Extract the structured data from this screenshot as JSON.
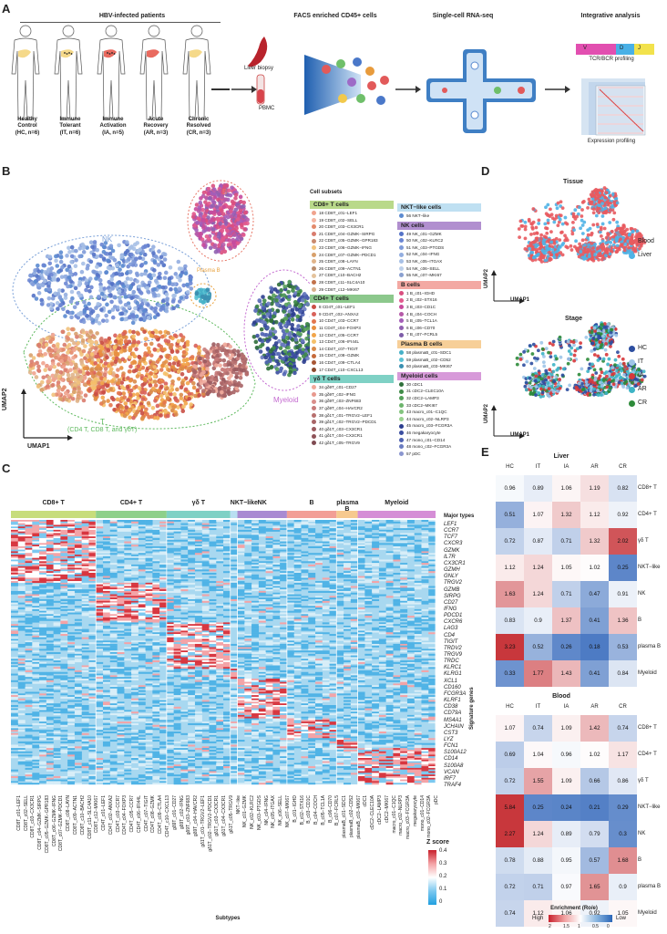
{
  "panels": {
    "A": "A",
    "B": "B",
    "C": "C",
    "D": "D",
    "E": "E"
  },
  "panelA": {
    "group_title": "HBV-infected patients",
    "patients": [
      {
        "name": "Healthy\nControl",
        "sub": "(HC, n=6)"
      },
      {
        "name": "Immune\nTolerant",
        "sub": "(IT, n=6)"
      },
      {
        "name": "Immune\nActivation",
        "sub": "(IA, n=5)"
      },
      {
        "name": "Acute\nRecovery",
        "sub": "(AR, n=3)"
      },
      {
        "name": "Chronic\nResolved",
        "sub": "(CR, n=3)"
      }
    ],
    "liver_biopsy": "Liver biopsy",
    "pbmc": "PBMC",
    "facs_title": "FACS enriched CD45+ cells",
    "scrna_title": "Single-cell RNA-seq",
    "integrative_title": "Integrative analysis",
    "vdj": [
      "V",
      "D",
      "J"
    ],
    "tcr_label": "TCR/BCR profiling",
    "expr_label": "Expression profiling"
  },
  "panelB": {
    "ylabel": "UMAP2",
    "xlabel": "UMAP1",
    "region_labels": {
      "b": "B",
      "nk": "NK",
      "plasma": "Plasma B",
      "myeloid": "Myeloid",
      "t": "T",
      "t_sub": "(CD4 T, CD8 T, and γδT)"
    },
    "legend_title": "Cell subsets",
    "groups_left": [
      {
        "title": "CD8+ T cells",
        "color": "#b9d98a",
        "items": [
          {
            "t": "18 CD8T_c01−LEF1",
            "c": "#f0a38e"
          },
          {
            "t": "19 CD8T_c02−SELL",
            "c": "#f4b6a3"
          },
          {
            "t": "20 CD8T_c03−CX3CR1",
            "c": "#e38a6b"
          },
          {
            "t": "21 CD8T_c04−GZMK−SIRPG",
            "c": "#d97c6e"
          },
          {
            "t": "22 CD8T_c05−GZMK−GPR183",
            "c": "#c98a6e"
          },
          {
            "t": "23 CD8T_c06−GZMK−IFNG",
            "c": "#f1c27d"
          },
          {
            "t": "24 CD8T_c07−GZMK−PDCD1",
            "c": "#d8a06b"
          },
          {
            "t": "25 CD8T_c08−LAYN",
            "c": "#e0b48a"
          },
          {
            "t": "26 CD8T_c09−ACTN1",
            "c": "#b98c6c"
          },
          {
            "t": "27 CD8T_c10−BACH2",
            "c": "#e4c39c"
          },
          {
            "t": "28 CD8T_c11−SLC4A10",
            "c": "#c2724a"
          },
          {
            "t": "29 CD8T_c12−MKI67",
            "c": "#d8b08a"
          }
        ]
      },
      {
        "title": "CD4+ T cells",
        "color": "#8cc88c",
        "items": [
          {
            "t": "8 CD4T_c01−LEF1",
            "c": "#c94f45"
          },
          {
            "t": "9 CD4T_c02−ANXA2",
            "c": "#d8615a"
          },
          {
            "t": "10 CD4T_c03−CCR7",
            "c": "#e3764e"
          },
          {
            "t": "11 CD4T_c04−FOXP3",
            "c": "#e88f3f"
          },
          {
            "t": "12 CD4T_c05−CCR7",
            "c": "#f2a54a"
          },
          {
            "t": "13 CD4T_c06−IFI44L",
            "c": "#f5c06a"
          },
          {
            "t": "14 CD4T_c07−TIGIT",
            "c": "#d98b4a"
          },
          {
            "t": "15 CD4T_c08−GZMK",
            "c": "#c66a3a"
          },
          {
            "t": "16 CD4T_c09−CTLA4",
            "c": "#a85634"
          },
          {
            "t": "17 CD4T_c10−CXCL13",
            "c": "#8c4a2e"
          }
        ]
      },
      {
        "title": "γδ T cells",
        "color": "#7fd1c5",
        "items": [
          {
            "t": "34 gδ9T_c01−CD27",
            "c": "#f0a99a"
          },
          {
            "t": "35 gδ9T_c02−IFNG",
            "c": "#e8998e"
          },
          {
            "t": "36 gδ9T_c03−ZNF683",
            "c": "#d98e8a"
          },
          {
            "t": "37 gδ9T_c04−HAVCR2",
            "c": "#c87b7a"
          },
          {
            "t": "38 gδ1T_c01−TRGV2−LEF1",
            "c": "#b76f6e"
          },
          {
            "t": "39 gδ1T_c02−TRGV2−PDCD1",
            "c": "#a76466"
          },
          {
            "t": "40 gδ1T_c03−CX3CR1",
            "c": "#9b5b5f"
          },
          {
            "t": "41 gδ1T_c04−CX3CR1",
            "c": "#8e5358"
          },
          {
            "t": "42 gδ1T_c05−TRGV9",
            "c": "#7f4b52"
          }
        ]
      }
    ],
    "groups_right": [
      {
        "title": "NKT−like cells",
        "color": "#bfe0f2",
        "items": [
          {
            "t": "56 NKT−like",
            "c": "#5c8bd0"
          }
        ]
      },
      {
        "title": "NK cells",
        "color": "#b18fcf",
        "items": [
          {
            "t": "49 NK_c01−GZMK",
            "c": "#5573c7"
          },
          {
            "t": "50 NK_c02−KLRC2",
            "c": "#6b86d3"
          },
          {
            "t": "51 NK_c03−PTGDS",
            "c": "#7f9bd9"
          },
          {
            "t": "52 NK_c04−IFNG",
            "c": "#93aee0"
          },
          {
            "t": "53 NK_c05−ITGAX",
            "c": "#a7c0e6"
          },
          {
            "t": "54 NK_c06−SELL",
            "c": "#bccfea"
          },
          {
            "t": "55 NK_c07−MKI67",
            "c": "#8aa0d0"
          }
        ]
      },
      {
        "title": "B cells",
        "color": "#f3a9a3",
        "items": [
          {
            "t": "1 B_c01−IGHD",
            "c": "#d94f80"
          },
          {
            "t": "2 B_c02−STX16",
            "c": "#e25a8e"
          },
          {
            "t": "3 B_c03−CD1C",
            "c": "#c84a9c"
          },
          {
            "t": "4 B_c04−COCH",
            "c": "#b55aa8"
          },
          {
            "t": "5 B_c05−TCL1A",
            "c": "#a45db8"
          },
          {
            "t": "6 B_c06−CD70",
            "c": "#9060b0"
          },
          {
            "t": "7 B_c07−FCRL5",
            "c": "#7d5ca8"
          }
        ]
      },
      {
        "title": "Plasma B cells",
        "color": "#f7cf98",
        "items": [
          {
            "t": "58 plasmaB_c01−SDC1",
            "c": "#45b0c8"
          },
          {
            "t": "59 plasmaB_c02−CD52",
            "c": "#5bc2d4"
          },
          {
            "t": "60 plasmaB_c03−MKI67",
            "c": "#3a8fb0"
          }
        ]
      },
      {
        "title": "Myeloid cells",
        "color": "#d79ad9",
        "items": [
          {
            "t": "30 cDC1",
            "c": "#2f6f3a"
          },
          {
            "t": "31 cDC2−CLEC10A",
            "c": "#3f8a47"
          },
          {
            "t": "32 cDC2−LAMP3",
            "c": "#55a05a"
          },
          {
            "t": "33 cDC2−MKI67",
            "c": "#6cb46c"
          },
          {
            "t": "43 macro_c01−C1QC",
            "c": "#83c47e"
          },
          {
            "t": "44 macro_c02−NLRP3",
            "c": "#9ad290"
          },
          {
            "t": "45 macro_c03−FCGR3A",
            "c": "#2c3e8f"
          },
          {
            "t": "46 megakaryocyte",
            "c": "#3b4ea0"
          },
          {
            "t": "47 mono_c01−CD14",
            "c": "#4f63b2"
          },
          {
            "t": "48 mono_c02−FCGR3A",
            "c": "#6a7cc0"
          },
          {
            "t": "57 pDC",
            "c": "#8a96cf"
          }
        ]
      }
    ]
  },
  "panelC": {
    "groups": [
      {
        "name": "CD8+ T",
        "color": "#c7dd7c",
        "n": 12
      },
      {
        "name": "CD4+ T",
        "color": "#8ed08a",
        "n": 10
      },
      {
        "name": "γδ T",
        "color": "#7fd1c5",
        "n": 9
      },
      {
        "name": "NKT−like",
        "color": "#b9dff2",
        "n": 1
      },
      {
        "name": "NK",
        "color": "#a98ad2",
        "n": 7
      },
      {
        "name": "B",
        "color": "#f29e96",
        "n": 7
      },
      {
        "name": "plasma B",
        "color": "#f6c98f",
        "n": 3
      },
      {
        "name": "Myeloid",
        "color": "#d58ed6",
        "n": 11
      }
    ],
    "major_types_label": "Major types",
    "signature_label": "Signature genes",
    "subtypes_label": "Subtypes",
    "genes": [
      "LEF1",
      "CCR7",
      "TCF7",
      "CXCR3",
      "GZMK",
      "IL7R",
      "CX3CR1",
      "GZMH",
      "GNLY",
      "TRGV2",
      "GZMB",
      "SIRPG",
      "CD27",
      "IFNG",
      "PDCD1",
      "CXCR6",
      "LAG3",
      "CD4",
      "TIGIT",
      "TRDV2",
      "TRGV9",
      "TRDC",
      "KLRC1",
      "KLRG1",
      "XCL1",
      "CD160",
      "FCGR3A",
      "KLRF1",
      "CD38",
      "CD79A",
      "MS4A1",
      "JCHAIN",
      "CST3",
      "LYZ",
      "FCN1",
      "S100A12",
      "CD14",
      "S100A8",
      "VCAN",
      "IRF7",
      "TRAF4"
    ],
    "subtypes": [
      "CD8T_c01−LEF1",
      "CD8T_c02−SELL",
      "CD8T_c03−CX3CR1",
      "CD8T_c04−GZMK−SIRPG",
      "CD8T_c05−GZMK−GPR183",
      "CD8T_c06−GZMK−IFNG",
      "CD8T_c07−GZMK−PDCD1",
      "CD8T_c08−LAYN",
      "CD8T_c09−ACTN1",
      "CD8T_c10−BACH2",
      "CD8T_c11−SLC4A10",
      "CD8T_c12−MKI67",
      "CD4T_c01−LEF1",
      "CD4T_c02−ANXA2",
      "CD4T_c03−CCR7",
      "CD4T_c04−FOXP3",
      "CD4T_c05−CCR7",
      "CD4T_c06−IFI44L",
      "CD4T_c07−TIGIT",
      "CD4T_c08−GZMK",
      "CD4T_c09−CTLA4",
      "CD4T_c10−CXCL13",
      "gδ9T_c01−CD27",
      "gδ9T_c02−IFNG",
      "gδ9T_c03−ZNF683",
      "gδ9T_c04−HAVCR2",
      "gδ1T_c01−TRGV2−LEF1",
      "gδ1T_c02−TRGV2−PDCD1",
      "gδ1T_c03−CX3CR1",
      "gδ1T_c04−CX3CR1",
      "gδ1T_c05−TRGV9",
      "NKT−like",
      "NK_c01−GZMK",
      "NK_c02−KLRC2",
      "NK_c03−PTGDS",
      "NK_c04−IFNG",
      "NK_c05−ITGAX",
      "NK_c06−SELL",
      "NK_c07−MKI67",
      "B_c01−IGHD",
      "B_c02−STX16",
      "B_c03−CD1C",
      "B_c04−COCH",
      "B_c05−TCL1A",
      "B_c06−CD70",
      "B_c07−FCRL5",
      "plasmaB_c01−SDC1",
      "plasmaB_c02−CD52",
      "plasmaB_c03−MKI67",
      "cDC1",
      "cDC2−CLEC10A",
      "cDC2−LAMP3",
      "cDC2−MKI67",
      "macro_c01−C1QC",
      "macro_c02−NLRP3",
      "macro_c03−FCGR3A",
      "megakaryocyte",
      "mono_c01−CD14",
      "mono_c02−FCGR3A",
      "pDC"
    ],
    "zscore_title": "Z score",
    "zscore_ticks": [
      "0.4",
      "0.3",
      "0.2",
      "0.1",
      "0"
    ]
  },
  "panelD": {
    "tissue_title": "Tissue",
    "stage_title": "Stage",
    "ylabel": "UMAP2",
    "xlabel": "UMAP1",
    "tissue_legend": [
      {
        "t": "Blood",
        "c": "#e85a5f"
      },
      {
        "t": "Liver",
        "c": "#4fb3e6"
      }
    ],
    "stage_legend": [
      {
        "t": "HC",
        "c": "#2d4ea0"
      },
      {
        "t": "IT",
        "c": "#9fc5e8"
      },
      {
        "t": "IA",
        "c": "#d7373b"
      },
      {
        "t": "AR",
        "c": "#3db4c5"
      },
      {
        "t": "CR",
        "c": "#2e8b3a"
      }
    ]
  },
  "panelE": {
    "cols": [
      "HC",
      "IT",
      "IA",
      "AR",
      "CR"
    ],
    "liver_title": "Liver",
    "blood_title": "Blood",
    "rows": [
      "CD8+ T",
      "CD4+ T",
      "γδ T",
      "NKT−like",
      "NK",
      "B",
      "plasma B",
      "Myeloid"
    ],
    "blood_rows": [
      "CD8+ T",
      "CD4+ T",
      "γδ T",
      "NKT−like",
      "NK",
      "B",
      "plasma B",
      "Myeloid"
    ],
    "liver": [
      [
        "0.96",
        "0.89",
        "1.06",
        "1.19",
        "0.82"
      ],
      [
        "0.51",
        "1.07",
        "1.32",
        "1.12",
        "0.92"
      ],
      [
        "0.72",
        "0.87",
        "0.71",
        "1.32",
        "2.02"
      ],
      [
        "1.12",
        "1.24",
        "1.05",
        "1.02",
        "0.25"
      ],
      [
        "1.63",
        "1.24",
        "0.71",
        "0.47",
        "0.91"
      ],
      [
        "0.83",
        "0.9",
        "1.37",
        "0.41",
        "1.36"
      ],
      [
        "3.23",
        "0.52",
        "0.26",
        "0.18",
        "0.53"
      ],
      [
        "0.33",
        "1.77",
        "1.43",
        "0.41",
        "0.84"
      ]
    ],
    "blood": [
      [
        "1.07",
        "0.74",
        "1.09",
        "1.42",
        "0.74"
      ],
      [
        "0.69",
        "1.04",
        "0.96",
        "1.02",
        "1.17"
      ],
      [
        "0.72",
        "1.55",
        "1.09",
        "0.66",
        "0.86"
      ],
      [
        "5.84",
        "0.25",
        "0.24",
        "0.21",
        "0.29"
      ],
      [
        "2.27",
        "1.24",
        "0.89",
        "0.79",
        "0.3"
      ],
      [
        "0.78",
        "0.88",
        "0.95",
        "0.57",
        "1.68"
      ],
      [
        "0.72",
        "0.71",
        "0.97",
        "1.65",
        "0.9"
      ],
      [
        "0.74",
        "1.12",
        "1.06",
        "0.92",
        "1.05"
      ]
    ],
    "legend_title": "Enrichment (Ro/e)",
    "legend_high": "High",
    "legend_low": "Low",
    "legend_ticks": [
      "2",
      "1.5",
      "1",
      "0.5",
      "0"
    ]
  }
}
